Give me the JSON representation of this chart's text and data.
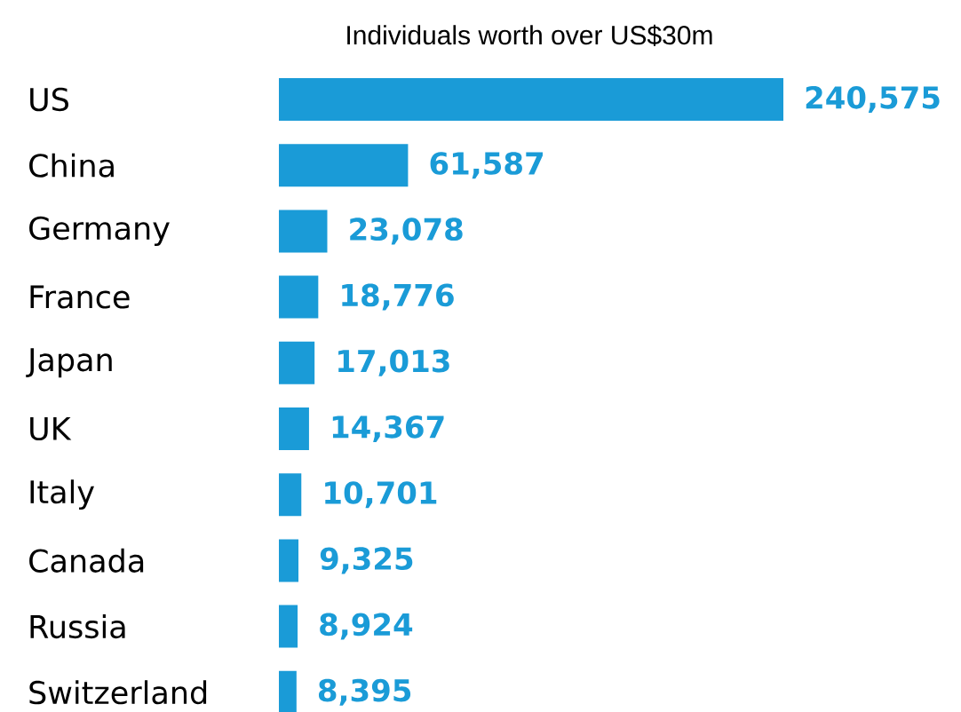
{
  "chart_data": {
    "type": "bar",
    "orientation": "horizontal",
    "title": "Individuals worth over US$30m",
    "categories": [
      "US",
      "China",
      "Germany",
      "France",
      "Japan",
      "UK",
      "Italy",
      "Canada",
      "Russia",
      "Switzerland"
    ],
    "values": [
      240575,
      61587,
      23078,
      18776,
      17013,
      14367,
      10701,
      9325,
      8924,
      8395
    ],
    "value_labels": [
      "240,575",
      "61,587",
      "23,078",
      "18,776",
      "17,013",
      "14,367",
      "10,701",
      "9,325",
      "8,924",
      "8,395"
    ],
    "color": "#1a9bd7"
  }
}
